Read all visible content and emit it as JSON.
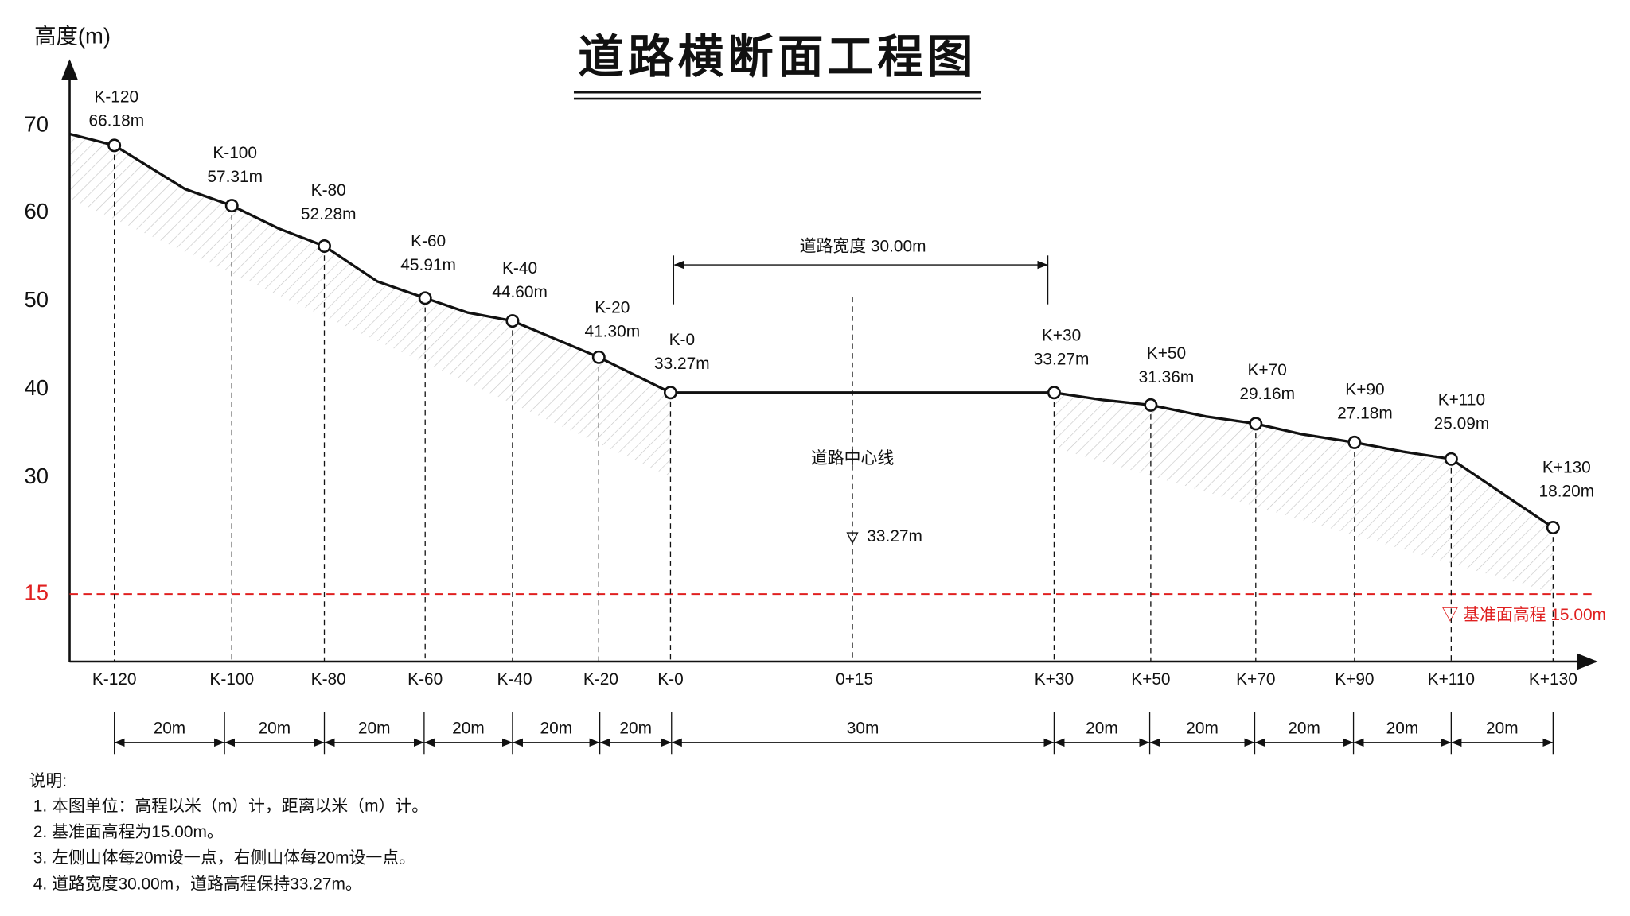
{
  "header": {
    "title": "道路横断面工程图",
    "y_axis_label": "高度(m)"
  },
  "y_axis": {
    "ticks": [
      "70",
      "60",
      "50",
      "40",
      "30"
    ],
    "datum_tick": "15"
  },
  "stations": [
    {
      "name": "K-120",
      "elevation": "66.18m"
    },
    {
      "name": "K-100",
      "elevation": "57.31m"
    },
    {
      "name": "K-80",
      "elevation": "52.28m"
    },
    {
      "name": "K-60",
      "elevation": "45.91m"
    },
    {
      "name": "K-40",
      "elevation": "44.60m"
    },
    {
      "name": "K-20",
      "elevation": "41.30m"
    },
    {
      "name": "K-0",
      "elevation": "33.27m"
    },
    {
      "name": "K+30",
      "elevation": "33.27m"
    },
    {
      "name": "K+50",
      "elevation": "31.36m"
    },
    {
      "name": "K+70",
      "elevation": "29.16m"
    },
    {
      "name": "K+90",
      "elevation": "27.18m"
    },
    {
      "name": "K+110",
      "elevation": "25.09m"
    },
    {
      "name": "K+130",
      "elevation": "18.20m"
    }
  ],
  "road": {
    "width_label": "道路宽度 30.00m",
    "centerline_label": "道路中心线",
    "centerline_elevation": "33.27m",
    "datum_label": "▽ 基准面高程 15.00m"
  },
  "x_axis_labels": [
    "K-120",
    "K-100",
    "K-80",
    "K-60",
    "K-40",
    "K-20",
    "K-0",
    "0+15",
    "K+30",
    "K+50",
    "K+70",
    "K+90",
    "K+110",
    "K+130"
  ],
  "dimensions": [
    "20m",
    "20m",
    "20m",
    "20m",
    "20m",
    "20m",
    "30m",
    "20m",
    "20m",
    "20m",
    "20m",
    "20m"
  ],
  "notes": {
    "heading": "说明:",
    "items": [
      "1. 本图单位：高程以米（m）计，距离以米（m）计。",
      "2. 基准面高程为15.00m。",
      "3. 左侧山体每20m设一点，右侧山体每20m设一点。",
      "4. 道路宽度30.00m，道路高程保持33.27m。"
    ]
  }
}
